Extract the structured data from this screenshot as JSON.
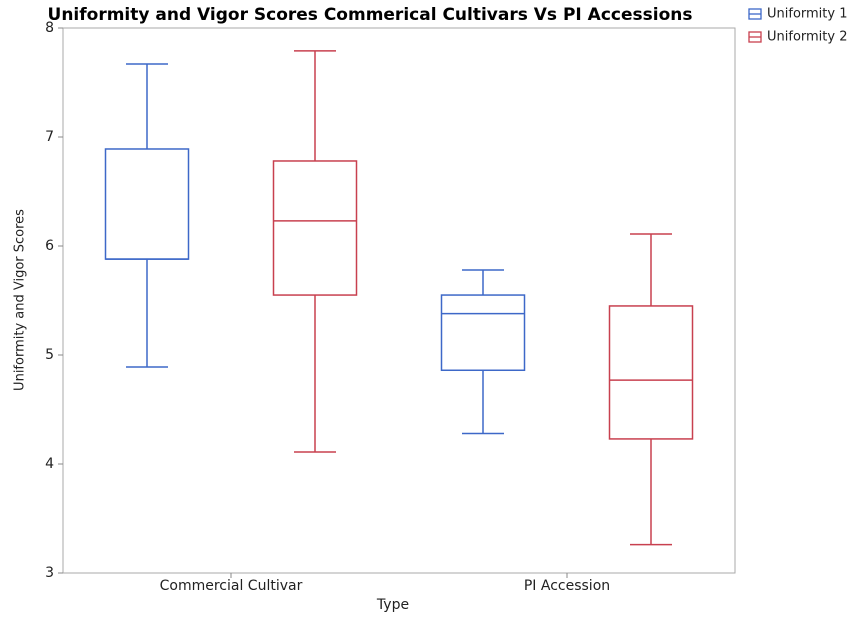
{
  "chart_data": {
    "type": "box",
    "title": "Uniformity and Vigor Scores Commerical Cultivars Vs PI Accessions",
    "x_label": "Type",
    "y_label": "Uniformity and Vigor Scores",
    "categories": [
      "Commercial Cultivar",
      "PI Accession"
    ],
    "series": [
      {
        "name": "Uniformity 1",
        "color": "#3d68c8",
        "values": [
          {
            "min": 4.89,
            "q1": 5.88,
            "median": 5.88,
            "q3": 6.89,
            "max": 7.67
          },
          {
            "min": 4.28,
            "q1": 4.86,
            "median": 5.38,
            "q3": 5.55,
            "max": 5.78
          }
        ]
      },
      {
        "name": "Uniformity 2",
        "color": "#c8404f",
        "values": [
          {
            "min": 4.11,
            "q1": 5.55,
            "median": 6.23,
            "q3": 6.78,
            "max": 7.79
          },
          {
            "min": 3.26,
            "q1": 4.23,
            "median": 4.77,
            "q3": 5.45,
            "max": 6.11
          }
        ]
      }
    ],
    "ylim": [
      3,
      8
    ],
    "yticks": [
      3,
      4,
      5,
      6,
      7,
      8
    ],
    "legend": "top-right"
  }
}
